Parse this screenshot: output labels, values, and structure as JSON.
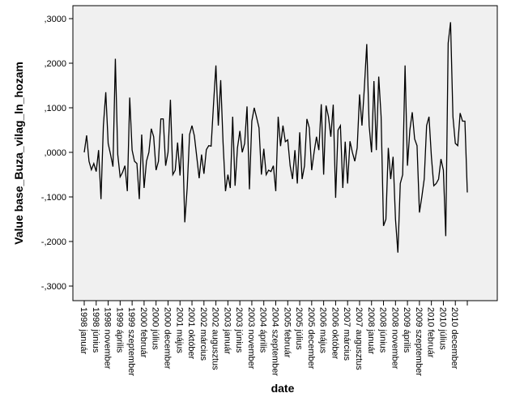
{
  "chart_data": {
    "type": "line",
    "title": "",
    "xlabel": "date",
    "ylabel": "Value base_Buza_vilag_ln_hozam",
    "ylim": [
      -0.33,
      0.3
    ],
    "yticks": [
      0.3,
      0.2,
      0.1,
      0.0,
      -0.1,
      -0.2,
      -0.3
    ],
    "ytick_labels": [
      ",3000",
      ",2000",
      ",1000",
      ",0000",
      "-,1000",
      "-,2000",
      "-,3000"
    ],
    "xtick_labels": [
      "1998 január",
      "1998 június",
      "1998 november",
      "1999 április",
      "1999 szeptember",
      "2000 február",
      "2000 július",
      "2000 december",
      "2001 május",
      "2001 október",
      "2002 március",
      "2002 augusztus",
      "2003 január",
      "2003 június",
      "2003 november",
      "2004 április",
      "2004 szeptember",
      "2005 február",
      "2005 július",
      "2005 december",
      "2006 május",
      "2006 október",
      "2007 március",
      "2007 augusztus",
      "2008 január",
      "2008 június",
      "2008 november",
      "2009 április",
      "2009 szeptember",
      "2010 február",
      "2010 július",
      "2010 december"
    ],
    "grid": false,
    "plot_background": "#f0f0f0",
    "line_color": "#000000",
    "series": [
      {
        "values": [
          0.0,
          0.038,
          -0.02,
          -0.039,
          -0.025,
          -0.043,
          0.005,
          -0.105,
          0.06,
          0.135,
          0.02,
          -0.005,
          -0.032,
          0.21,
          -0.005,
          -0.055,
          -0.045,
          -0.03,
          -0.087,
          0.123,
          0.005,
          -0.02,
          -0.025,
          -0.105,
          0.04,
          -0.08,
          -0.02,
          0.0,
          0.053,
          0.035,
          -0.04,
          -0.02,
          0.075,
          0.075,
          -0.03,
          0.0,
          0.118,
          -0.05,
          -0.04,
          0.022,
          -0.052,
          0.042,
          -0.157,
          -0.08,
          0.04,
          0.06,
          0.037,
          -0.01,
          -0.058,
          -0.005,
          -0.048,
          0.006,
          0.015,
          0.014,
          0.108,
          0.195,
          0.06,
          0.162,
          0.02,
          -0.087,
          -0.05,
          -0.08,
          0.08,
          -0.075,
          0.01,
          0.048,
          0.0,
          0.02,
          0.103,
          -0.083,
          0.07,
          0.1,
          0.078,
          0.055,
          -0.05,
          0.008,
          -0.05,
          -0.04,
          -0.043,
          -0.03,
          -0.087,
          0.08,
          0.014,
          0.06,
          0.024,
          0.028,
          -0.03,
          -0.06,
          0.005,
          -0.07,
          0.045,
          -0.06,
          -0.03,
          0.075,
          0.055,
          -0.04,
          0.0,
          0.035,
          0.005,
          0.108,
          -0.05,
          0.105,
          0.08,
          0.035,
          0.107,
          -0.102,
          0.05,
          0.06,
          -0.08,
          0.024,
          -0.07,
          0.025,
          0.0,
          -0.02,
          0.01,
          0.13,
          0.06,
          0.145,
          0.243,
          0.06,
          0.0,
          0.16,
          0.005,
          0.17,
          0.08,
          -0.165,
          -0.15,
          0.01,
          -0.06,
          -0.01,
          -0.15,
          -0.225,
          -0.07,
          -0.05,
          0.195,
          -0.03,
          0.05,
          0.09,
          0.03,
          0.015,
          -0.135,
          -0.1,
          -0.06,
          0.06,
          0.08,
          -0.01,
          -0.075,
          -0.07,
          -0.06,
          -0.015,
          -0.04,
          -0.188,
          0.245,
          0.292,
          0.08,
          0.02,
          0.015,
          0.088,
          0.07,
          0.07,
          -0.09
        ]
      }
    ]
  }
}
